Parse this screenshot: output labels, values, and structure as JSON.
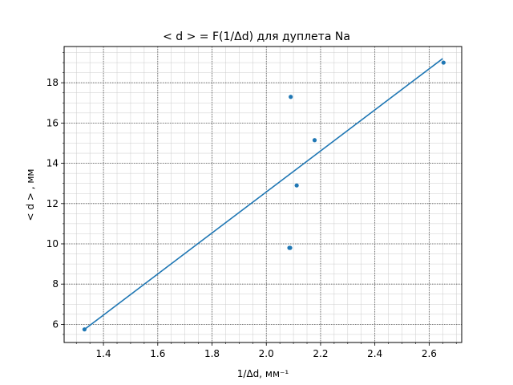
{
  "chart_data": {
    "type": "scatter",
    "title": "< d > = F(1/Δd) для дуплета Na",
    "xlabel": "1/Δd, мм⁻¹",
    "ylabel": "< d > , мм",
    "xlim": [
      1.255,
      2.72
    ],
    "ylim": [
      5.1,
      19.8
    ],
    "x_ticks": [
      1.4,
      1.6,
      1.8,
      2.0,
      2.2,
      2.4,
      2.6
    ],
    "x_tick_labels": [
      "1.4",
      "1.6",
      "1.8",
      "2.0",
      "2.2",
      "2.4",
      "2.6"
    ],
    "y_ticks": [
      6,
      8,
      10,
      12,
      14,
      16,
      18
    ],
    "y_tick_labels": [
      "6",
      "8",
      "10",
      "12",
      "14",
      "16",
      "18"
    ],
    "grid": true,
    "colors": {
      "series": "#1f77b4",
      "major_grid": "#555555",
      "minor_grid": "#cccccc"
    },
    "series": [
      {
        "kind": "points",
        "x": [
          1.33,
          2.085,
          2.088,
          2.09,
          2.112,
          2.178,
          2.653
        ],
        "y": [
          5.75,
          9.8,
          9.8,
          17.3,
          12.9,
          15.15,
          19.0
        ]
      },
      {
        "kind": "fit-line",
        "x": [
          1.33,
          2.65
        ],
        "y": [
          5.75,
          19.2
        ]
      }
    ]
  }
}
